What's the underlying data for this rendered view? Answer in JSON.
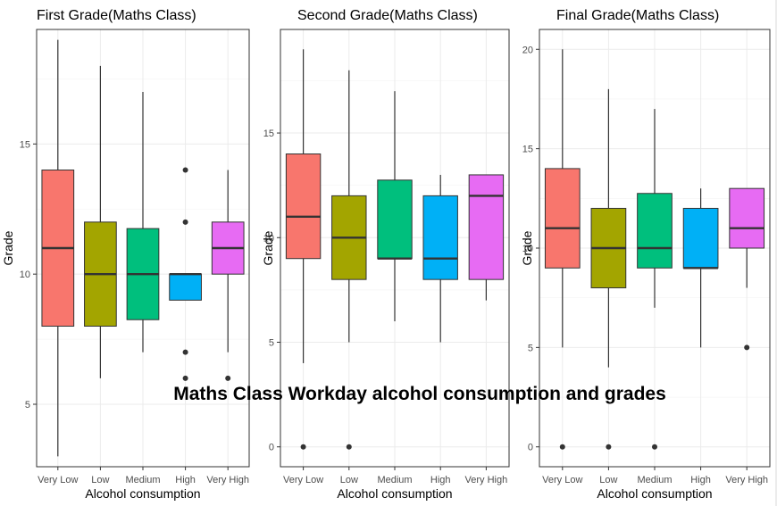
{
  "figure_title": "Maths Class Workday alcohol consumption and grades",
  "chart_data": [
    {
      "type": "box",
      "title": "First Grade(Maths Class)",
      "xlabel": "Alcohol consumption",
      "ylabel": "Grade",
      "categories": [
        "Very Low",
        "Low",
        "Medium",
        "High",
        "Very High"
      ],
      "ylim": [
        2.6,
        19.4
      ],
      "yticks": [
        5,
        10,
        15
      ],
      "grid": true,
      "colors": [
        "#F8766D",
        "#A3A500",
        "#00BF7D",
        "#00B0F6",
        "#E76BF3"
      ],
      "boxes": [
        {
          "min": 3,
          "q1": 8,
          "median": 11,
          "q3": 14,
          "max": 19,
          "outliers": []
        },
        {
          "min": 6,
          "q1": 8,
          "median": 10,
          "q3": 12,
          "max": 18,
          "outliers": []
        },
        {
          "min": 7,
          "q1": 8.25,
          "median": 10,
          "q3": 11.75,
          "max": 17,
          "outliers": []
        },
        {
          "min": 9,
          "q1": 9,
          "median": 10,
          "q3": 10,
          "max": 10,
          "outliers": [
            6,
            7,
            12,
            14
          ]
        },
        {
          "min": 7,
          "q1": 10,
          "median": 11,
          "q3": 12,
          "max": 14,
          "outliers": [
            6
          ]
        }
      ]
    },
    {
      "type": "box",
      "title": "Second Grade(Maths Class)",
      "xlabel": "Alcohol consumption",
      "ylabel": "Grade",
      "categories": [
        "Very Low",
        "Low",
        "Medium",
        "High",
        "Very High"
      ],
      "ylim": [
        -0.95,
        19.95
      ],
      "yticks": [
        0,
        5,
        10,
        15
      ],
      "grid": true,
      "colors": [
        "#F8766D",
        "#A3A500",
        "#00BF7D",
        "#00B0F6",
        "#E76BF3"
      ],
      "boxes": [
        {
          "min": 4,
          "q1": 9,
          "median": 11,
          "q3": 14,
          "max": 19,
          "outliers": [
            0
          ]
        },
        {
          "min": 5,
          "q1": 8,
          "median": 10,
          "q3": 12,
          "max": 18,
          "outliers": [
            0
          ]
        },
        {
          "min": 6,
          "q1": 9,
          "median": 9,
          "q3": 12.75,
          "max": 17,
          "outliers": []
        },
        {
          "min": 5,
          "q1": 8,
          "median": 9,
          "q3": 12,
          "max": 13,
          "outliers": []
        },
        {
          "min": 7,
          "q1": 8,
          "median": 12,
          "q3": 13,
          "max": 13,
          "outliers": []
        }
      ]
    },
    {
      "type": "box",
      "title": "Final Grade(Maths Class)",
      "xlabel": "Alcohol consumption",
      "ylabel": "Grade",
      "categories": [
        "Very Low",
        "Low",
        "Medium",
        "High",
        "Very High"
      ],
      "ylim": [
        -1,
        21
      ],
      "yticks": [
        0,
        5,
        10,
        15,
        20
      ],
      "grid": true,
      "colors": [
        "#F8766D",
        "#A3A500",
        "#00BF7D",
        "#00B0F6",
        "#E76BF3"
      ],
      "boxes": [
        {
          "min": 5,
          "q1": 9,
          "median": 11,
          "q3": 14,
          "max": 20,
          "outliers": [
            0
          ]
        },
        {
          "min": 4,
          "q1": 8,
          "median": 10,
          "q3": 12,
          "max": 18,
          "outliers": [
            0
          ]
        },
        {
          "min": 7,
          "q1": 9,
          "median": 10,
          "q3": 12.75,
          "max": 17,
          "outliers": [
            0
          ]
        },
        {
          "min": 5,
          "q1": 9,
          "median": 9,
          "q3": 12,
          "max": 13,
          "outliers": []
        },
        {
          "min": 8,
          "q1": 10,
          "median": 11,
          "q3": 13,
          "max": 13,
          "outliers": [
            5
          ]
        }
      ]
    }
  ]
}
